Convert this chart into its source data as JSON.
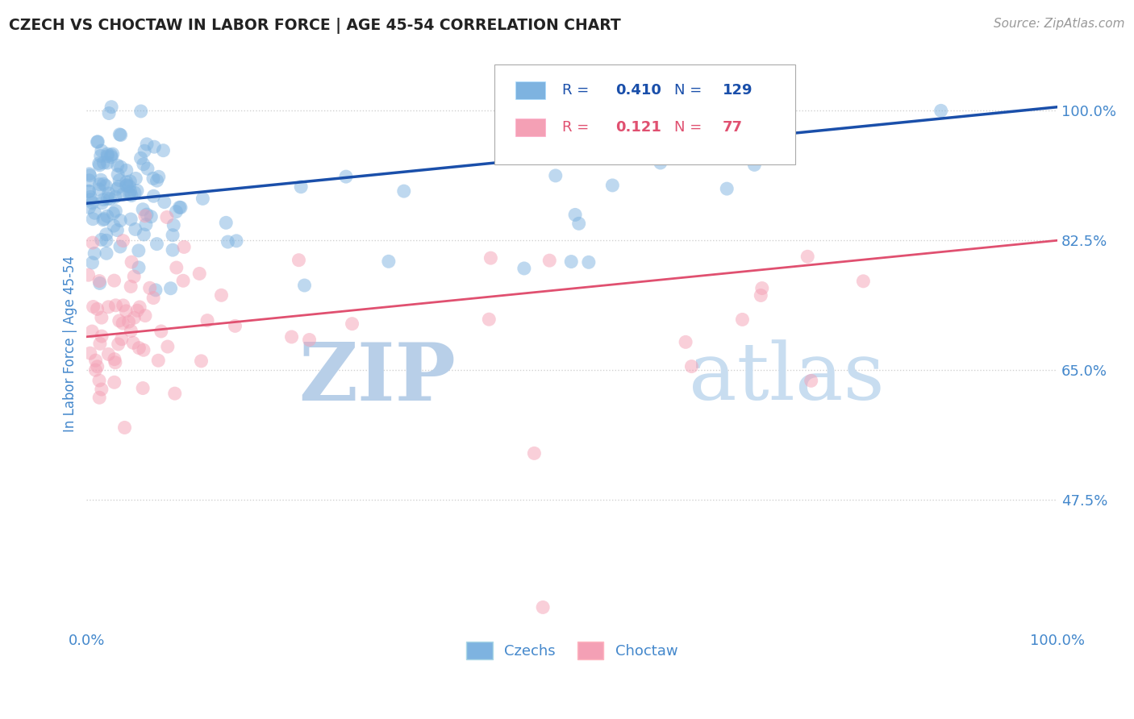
{
  "title": "CZECH VS CHOCTAW IN LABOR FORCE | AGE 45-54 CORRELATION CHART",
  "source": "Source: ZipAtlas.com",
  "ylabel": "In Labor Force | Age 45-54",
  "xlim": [
    0.0,
    1.0
  ],
  "ylim": [
    0.3,
    1.07
  ],
  "yticks": [
    0.475,
    0.65,
    0.825,
    1.0
  ],
  "ytick_labels": [
    "47.5%",
    "65.0%",
    "82.5%",
    "100.0%"
  ],
  "xtick_labels": [
    "0.0%",
    "100.0%"
  ],
  "xticks": [
    0.0,
    1.0
  ],
  "czech_R": 0.41,
  "czech_N": 129,
  "choctaw_R": 0.121,
  "choctaw_N": 77,
  "blue_color": "#7eb3e0",
  "pink_color": "#f4a0b5",
  "blue_line_color": "#1a4faa",
  "pink_line_color": "#e05070",
  "watermark_color1": "#b8cfe8",
  "watermark_color2": "#c8ddf0",
  "legend_label_czech": "Czechs",
  "legend_label_choctaw": "Choctaw",
  "background_color": "#ffffff",
  "grid_color": "#cccccc",
  "title_color": "#222222",
  "axis_label_color": "#4488cc",
  "tick_color": "#4488cc",
  "czech_line_y0": 0.875,
  "czech_line_y1": 1.005,
  "choctaw_line_y0": 0.695,
  "choctaw_line_y1": 0.825
}
